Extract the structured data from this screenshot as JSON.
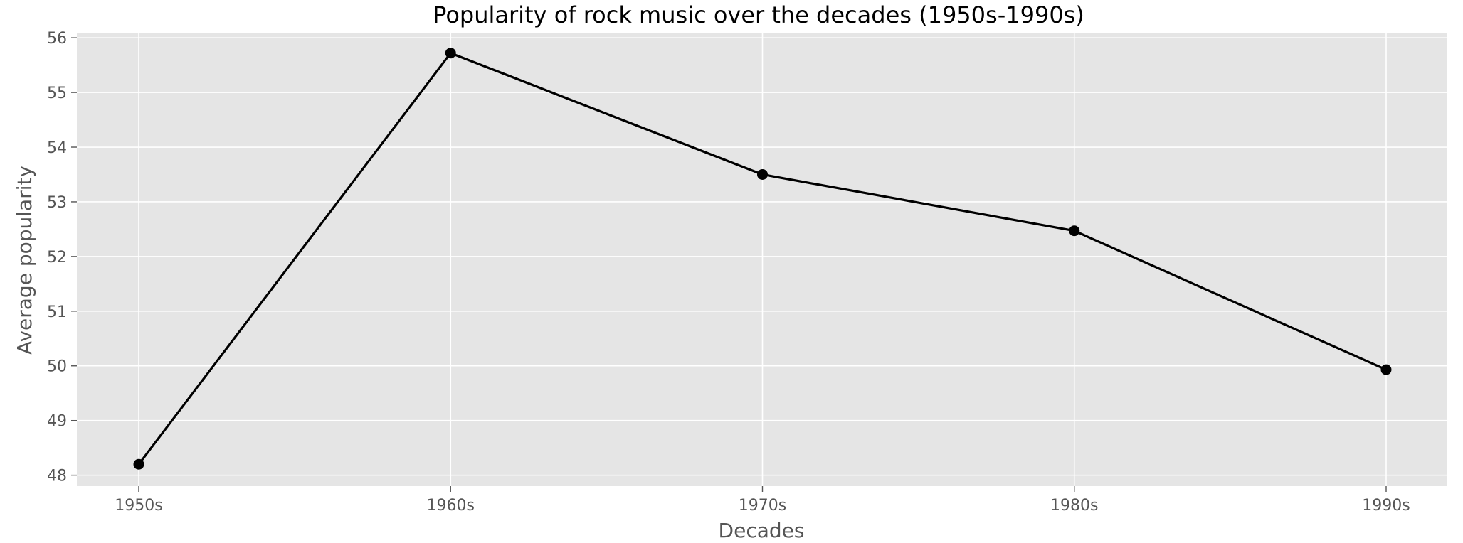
{
  "chart_data": {
    "type": "line",
    "title": "Popularity of rock music over the decades (1950s-1990s)",
    "xlabel": "Decades",
    "ylabel": "Average popularity",
    "categories": [
      "1950s",
      "1960s",
      "1970s",
      "1980s",
      "1990s"
    ],
    "series": [
      {
        "values": [
          48.2,
          55.72,
          53.5,
          52.47,
          49.93
        ]
      }
    ],
    "ylim": [
      47.8,
      56.08
    ],
    "yticks": [
      48,
      49,
      50,
      51,
      52,
      53,
      54,
      55,
      56
    ],
    "grid": true,
    "colors": {
      "plot_background": "#e5e5e5",
      "grid": "#ffffff",
      "line": "#000000",
      "marker": "#000000",
      "text": "#555555",
      "title": "#000000"
    }
  }
}
